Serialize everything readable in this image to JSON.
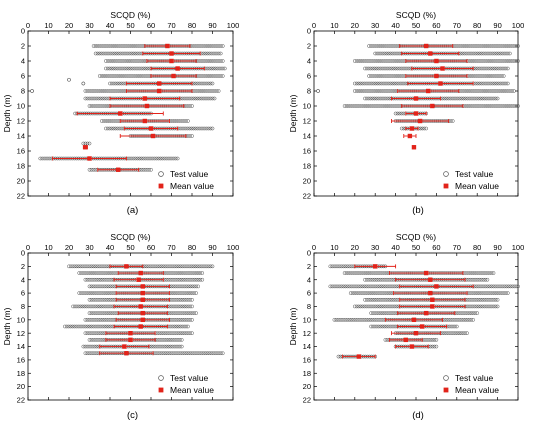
{
  "chart_data": [
    {
      "type": "scatter",
      "panel_label": "(a)",
      "xlabel": "SCQD (%)",
      "ylabel": "Depth (m)",
      "xlim": [
        0,
        100
      ],
      "ylim": [
        0,
        22
      ],
      "x_ticks": [
        0,
        10,
        20,
        30,
        40,
        50,
        60,
        70,
        80,
        90,
        100
      ],
      "y_ticks": [
        0,
        2,
        4,
        6,
        8,
        10,
        12,
        14,
        16,
        18,
        20,
        22
      ],
      "y_axis_inverted": true,
      "x_axis_position": "top",
      "grid": false,
      "legend_position": "bottom-right",
      "legend": [
        "Test value",
        "Mean value"
      ],
      "test_values": [
        {
          "depth": 2,
          "min": 32,
          "max": 95
        },
        {
          "depth": 3,
          "min": 33,
          "max": 94
        },
        {
          "depth": 4,
          "min": 38,
          "max": 95
        },
        {
          "depth": 5,
          "min": 38,
          "max": 96
        },
        {
          "depth": 6,
          "min": 35,
          "max": 95
        },
        {
          "depth": 6.5,
          "min": 20,
          "max": 20
        },
        {
          "depth": 7,
          "min": 40,
          "max": 90
        },
        {
          "depth": 7,
          "min": 27,
          "max": 27
        },
        {
          "depth": 8,
          "min": 28,
          "max": 93
        },
        {
          "depth": 8,
          "min": 2,
          "max": 2
        },
        {
          "depth": 9,
          "min": 28,
          "max": 91
        },
        {
          "depth": 10,
          "min": 30,
          "max": 80
        },
        {
          "depth": 11,
          "min": 23,
          "max": 60
        },
        {
          "depth": 12,
          "min": 36,
          "max": 78
        },
        {
          "depth": 13,
          "min": 38,
          "max": 90
        },
        {
          "depth": 14,
          "min": 50,
          "max": 80
        },
        {
          "depth": 15,
          "min": 27,
          "max": 30
        },
        {
          "depth": 17,
          "min": 6,
          "max": 73
        },
        {
          "depth": 18.5,
          "min": 30,
          "max": 60
        }
      ],
      "mean_values": [
        {
          "depth": 2,
          "mean": 68,
          "sd": 11
        },
        {
          "depth": 3,
          "mean": 70,
          "sd": 14
        },
        {
          "depth": 4,
          "mean": 70,
          "sd": 12
        },
        {
          "depth": 5,
          "mean": 73,
          "sd": 13
        },
        {
          "depth": 6,
          "mean": 71,
          "sd": 11
        },
        {
          "depth": 7,
          "mean": 64,
          "sd": 16
        },
        {
          "depth": 8,
          "mean": 64,
          "sd": 16
        },
        {
          "depth": 9,
          "mean": 57,
          "sd": 17
        },
        {
          "depth": 10,
          "mean": 58,
          "sd": 18
        },
        {
          "depth": 11,
          "mean": 45,
          "sd": 21
        },
        {
          "depth": 12,
          "mean": 57,
          "sd": 12
        },
        {
          "depth": 13,
          "mean": 60,
          "sd": 13
        },
        {
          "depth": 14,
          "mean": 61,
          "sd": 16
        },
        {
          "depth": 15.5,
          "mean": 28,
          "sd": 1
        },
        {
          "depth": 17,
          "mean": 30,
          "sd": 18
        },
        {
          "depth": 18.5,
          "mean": 44,
          "sd": 10
        }
      ]
    },
    {
      "type": "scatter",
      "panel_label": "(b)",
      "xlabel": "SCQD (%)",
      "ylabel": "Depth (m)",
      "xlim": [
        0,
        100
      ],
      "ylim": [
        0,
        22
      ],
      "x_ticks": [
        0,
        10,
        20,
        30,
        40,
        50,
        60,
        70,
        80,
        90,
        100
      ],
      "y_ticks": [
        0,
        2,
        4,
        6,
        8,
        10,
        12,
        14,
        16,
        18,
        20,
        22
      ],
      "y_axis_inverted": true,
      "x_axis_position": "top",
      "grid": false,
      "legend_position": "bottom-right",
      "legend": [
        "Test value",
        "Mean value"
      ],
      "test_values": [
        {
          "depth": 2,
          "min": 27,
          "max": 100
        },
        {
          "depth": 3,
          "min": 30,
          "max": 96
        },
        {
          "depth": 4,
          "min": 20,
          "max": 100
        },
        {
          "depth": 5,
          "min": 25,
          "max": 95
        },
        {
          "depth": 6,
          "min": 27,
          "max": 93
        },
        {
          "depth": 7,
          "min": 20,
          "max": 95
        },
        {
          "depth": 8,
          "min": 20,
          "max": 98
        },
        {
          "depth": 8,
          "min": 2,
          "max": 2
        },
        {
          "depth": 9,
          "min": 25,
          "max": 90
        },
        {
          "depth": 10,
          "min": 15,
          "max": 100
        },
        {
          "depth": 11,
          "min": 40,
          "max": 55
        },
        {
          "depth": 12,
          "min": 40,
          "max": 68
        },
        {
          "depth": 13,
          "min": 43,
          "max": 55
        }
      ],
      "mean_values": [
        {
          "depth": 2,
          "mean": 55,
          "sd": 13
        },
        {
          "depth": 3,
          "mean": 57,
          "sd": 14
        },
        {
          "depth": 4,
          "mean": 60,
          "sd": 15
        },
        {
          "depth": 5,
          "mean": 63,
          "sd": 15
        },
        {
          "depth": 6,
          "mean": 60,
          "sd": 15
        },
        {
          "depth": 7,
          "mean": 62,
          "sd": 16
        },
        {
          "depth": 8,
          "mean": 56,
          "sd": 15
        },
        {
          "depth": 9,
          "mean": 50,
          "sd": 12
        },
        {
          "depth": 10,
          "mean": 58,
          "sd": 15
        },
        {
          "depth": 11,
          "mean": 50,
          "sd": 5
        },
        {
          "depth": 12,
          "mean": 52,
          "sd": 14
        },
        {
          "depth": 13,
          "mean": 48,
          "sd": 3
        },
        {
          "depth": 14,
          "mean": 47,
          "sd": 3
        },
        {
          "depth": 15.5,
          "mean": 49,
          "sd": 0
        }
      ]
    },
    {
      "type": "scatter",
      "panel_label": "(c)",
      "xlabel": "SCQD (%)",
      "ylabel": "Depth (m)",
      "xlim": [
        0,
        100
      ],
      "ylim": [
        0,
        22
      ],
      "x_ticks": [
        0,
        10,
        20,
        30,
        40,
        50,
        60,
        70,
        80,
        90,
        100
      ],
      "y_ticks": [
        0,
        2,
        4,
        6,
        8,
        10,
        12,
        14,
        16,
        18,
        20,
        22
      ],
      "y_axis_inverted": true,
      "x_axis_position": "top",
      "grid": false,
      "legend_position": "bottom-right",
      "legend": [
        "Test value",
        "Mean value"
      ],
      "test_values": [
        {
          "depth": 2,
          "min": 20,
          "max": 90
        },
        {
          "depth": 3,
          "min": 25,
          "max": 85
        },
        {
          "depth": 4,
          "min": 28,
          "max": 85
        },
        {
          "depth": 5,
          "min": 30,
          "max": 83
        },
        {
          "depth": 6,
          "min": 25,
          "max": 82
        },
        {
          "depth": 7,
          "min": 30,
          "max": 80
        },
        {
          "depth": 8,
          "min": 22,
          "max": 80
        },
        {
          "depth": 9,
          "min": 30,
          "max": 82
        },
        {
          "depth": 10,
          "min": 28,
          "max": 80
        },
        {
          "depth": 11,
          "min": 18,
          "max": 78
        },
        {
          "depth": 12,
          "min": 28,
          "max": 80
        },
        {
          "depth": 13,
          "min": 30,
          "max": 75
        },
        {
          "depth": 14,
          "min": 27,
          "max": 75
        },
        {
          "depth": 15,
          "min": 28,
          "max": 95
        }
      ],
      "mean_values": [
        {
          "depth": 2,
          "mean": 48,
          "sd": 8
        },
        {
          "depth": 3,
          "mean": 55,
          "sd": 11
        },
        {
          "depth": 4,
          "mean": 54,
          "sd": 12
        },
        {
          "depth": 5,
          "mean": 56,
          "sd": 13
        },
        {
          "depth": 6,
          "mean": 56,
          "sd": 13
        },
        {
          "depth": 7,
          "mean": 56,
          "sd": 13
        },
        {
          "depth": 8,
          "mean": 55,
          "sd": 13
        },
        {
          "depth": 9,
          "mean": 56,
          "sd": 12
        },
        {
          "depth": 10,
          "mean": 56,
          "sd": 13
        },
        {
          "depth": 11,
          "mean": 55,
          "sd": 13
        },
        {
          "depth": 12,
          "mean": 50,
          "sd": 12
        },
        {
          "depth": 13,
          "mean": 50,
          "sd": 12
        },
        {
          "depth": 14,
          "mean": 47,
          "sd": 12
        },
        {
          "depth": 15,
          "mean": 48,
          "sd": 13
        }
      ]
    },
    {
      "type": "scatter",
      "panel_label": "(d)",
      "xlabel": "SCQD (%)",
      "ylabel": "Depth (m)",
      "xlim": [
        0,
        100
      ],
      "ylim": [
        0,
        22
      ],
      "x_ticks": [
        0,
        10,
        20,
        30,
        40,
        50,
        60,
        70,
        80,
        90,
        100
      ],
      "y_ticks": [
        0,
        2,
        4,
        6,
        8,
        10,
        12,
        14,
        16,
        18,
        20,
        22
      ],
      "y_axis_inverted": true,
      "x_axis_position": "top",
      "grid": false,
      "legend_position": "bottom-right",
      "legend": [
        "Test value",
        "Mean value"
      ],
      "test_values": [
        {
          "depth": 2,
          "min": 8,
          "max": 35
        },
        {
          "depth": 3,
          "min": 15,
          "max": 88
        },
        {
          "depth": 4,
          "min": 25,
          "max": 85
        },
        {
          "depth": 5,
          "min": 8,
          "max": 100
        },
        {
          "depth": 6,
          "min": 18,
          "max": 95
        },
        {
          "depth": 7,
          "min": 25,
          "max": 90
        },
        {
          "depth": 8,
          "min": 20,
          "max": 90
        },
        {
          "depth": 9,
          "min": 28,
          "max": 80
        },
        {
          "depth": 10,
          "min": 10,
          "max": 78
        },
        {
          "depth": 11,
          "min": 28,
          "max": 70
        },
        {
          "depth": 12,
          "min": 40,
          "max": 75
        },
        {
          "depth": 13,
          "min": 35,
          "max": 60
        },
        {
          "depth": 14,
          "min": 40,
          "max": 60
        },
        {
          "depth": 15.5,
          "min": 12,
          "max": 30
        }
      ],
      "mean_values": [
        {
          "depth": 2,
          "mean": 30,
          "sd": 10
        },
        {
          "depth": 3,
          "mean": 55,
          "sd": 18
        },
        {
          "depth": 4,
          "mean": 57,
          "sd": 17
        },
        {
          "depth": 5,
          "mean": 60,
          "sd": 18
        },
        {
          "depth": 6,
          "mean": 57,
          "sd": 18
        },
        {
          "depth": 7,
          "mean": 58,
          "sd": 16
        },
        {
          "depth": 8,
          "mean": 58,
          "sd": 16
        },
        {
          "depth": 9,
          "mean": 55,
          "sd": 14
        },
        {
          "depth": 10,
          "mean": 49,
          "sd": 14
        },
        {
          "depth": 11,
          "mean": 53,
          "sd": 12
        },
        {
          "depth": 12,
          "mean": 50,
          "sd": 12
        },
        {
          "depth": 13,
          "mean": 45,
          "sd": 8
        },
        {
          "depth": 14,
          "mean": 48,
          "sd": 8
        },
        {
          "depth": 15.5,
          "mean": 22,
          "sd": 8
        }
      ]
    }
  ],
  "colors": {
    "mean": "#e2231a",
    "test": "#555555",
    "axis": "#000000"
  }
}
